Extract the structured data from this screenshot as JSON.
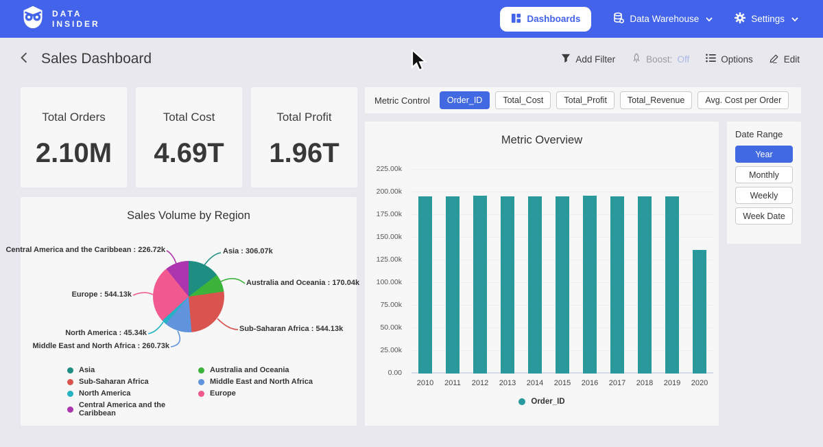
{
  "nav": {
    "brand_line1": "DATA",
    "brand_line2": "INSIDER",
    "dashboards_label": "Dashboards",
    "data_warehouse_label": "Data Warehouse",
    "settings_label": "Settings"
  },
  "header": {
    "title": "Sales Dashboard",
    "add_filter_label": "Add Filter",
    "boost_label": "Boost:",
    "boost_state": "Off",
    "options_label": "Options",
    "edit_label": "Edit"
  },
  "kpis": [
    {
      "label": "Total Orders",
      "value": "2.10M"
    },
    {
      "label": "Total Cost",
      "value": "4.69T"
    },
    {
      "label": "Total Profit",
      "value": "1.96T"
    }
  ],
  "metric_control": {
    "label": "Metric Control",
    "options": [
      {
        "label": "Order_ID",
        "active": true
      },
      {
        "label": "Total_Cost",
        "active": false
      },
      {
        "label": "Total_Profit",
        "active": false
      },
      {
        "label": "Total_Revenue",
        "active": false
      },
      {
        "label": "Avg. Cost per Order",
        "active": false
      }
    ]
  },
  "date_range": {
    "label": "Date Range",
    "options": [
      {
        "label": "Year",
        "active": true
      },
      {
        "label": "Monthly",
        "active": false
      },
      {
        "label": "Weekly",
        "active": false
      },
      {
        "label": "Week Date",
        "active": false
      }
    ]
  },
  "chart_data": [
    {
      "type": "pie",
      "title": "Sales Volume by Region",
      "unit": "k",
      "legend_position": "bottom",
      "slices": [
        {
          "label": "Asia",
          "value": 306.07,
          "display": "Asia : 306.07k",
          "color": "#1e8e82"
        },
        {
          "label": "Australia and Oceania",
          "value": 170.04,
          "display": "Australia and Oceania : 170.04k",
          "color": "#3cb43c"
        },
        {
          "label": "Sub-Saharan Africa",
          "value": 544.13,
          "display": "Sub-Saharan Africa : 544.13k",
          "color": "#d9544f"
        },
        {
          "label": "Middle East and North Africa",
          "value": 260.73,
          "display": "Middle East and North Africa : 260.73k",
          "color": "#6094dd"
        },
        {
          "label": "North America",
          "value": 45.34,
          "display": "North America : 45.34k",
          "color": "#25b2c4"
        },
        {
          "label": "Europe",
          "value": 544.13,
          "display": "Europe : 544.13k",
          "color": "#f2598e"
        },
        {
          "label": "Central America and the Caribbean",
          "value": 226.72,
          "display": "Central America and the Caribbean : 226.72k",
          "color": "#ad35ad"
        }
      ]
    },
    {
      "type": "bar",
      "title": "Metric Overview",
      "categories": [
        "2010",
        "2011",
        "2012",
        "2013",
        "2014",
        "2015",
        "2016",
        "2017",
        "2018",
        "2019",
        "2020"
      ],
      "series": [
        {
          "name": "Order_ID",
          "color": "#29999d",
          "values": [
            195.5,
            195.5,
            196.5,
            195.5,
            195.3,
            195.4,
            196.6,
            195.8,
            195.4,
            195.5,
            136.2
          ]
        }
      ],
      "unit": "k",
      "ylim": [
        0,
        225
      ],
      "ytick_values": [
        225,
        200,
        175,
        150,
        125,
        100,
        75,
        50,
        25,
        0
      ],
      "ytick_labels": [
        "225.00k",
        "200.00k",
        "175.00k",
        "150.00k",
        "125.00k",
        "100.00k",
        "75.00k",
        "50.00k",
        "25.00k",
        "0.00"
      ],
      "grid": true,
      "legend_position": "bottom"
    }
  ],
  "colors": {
    "navbar_blue": "#4263ea",
    "accent_blue": "#4169e1",
    "bar_teal": "#29999d",
    "boost_off_text": "#aab9ec"
  }
}
